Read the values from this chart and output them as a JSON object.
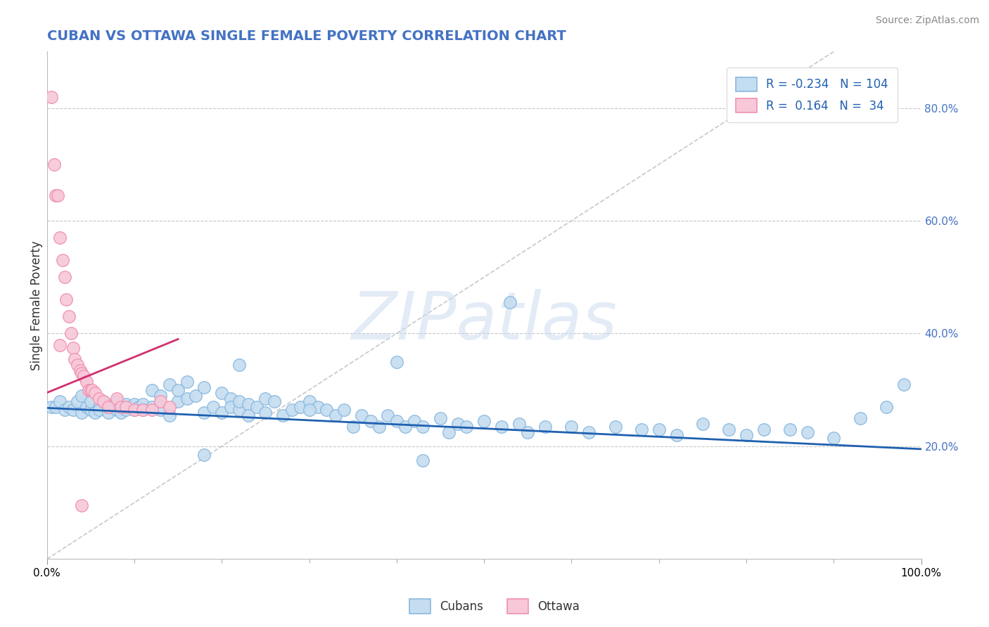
{
  "title": "CUBAN VS OTTAWA SINGLE FEMALE POVERTY CORRELATION CHART",
  "source": "Source: ZipAtlas.com",
  "ylabel": "Single Female Poverty",
  "xlim": [
    0,
    1.0
  ],
  "ylim": [
    0,
    0.9
  ],
  "y_tick_labels": [
    "20.0%",
    "40.0%",
    "60.0%",
    "80.0%"
  ],
  "y_tick_positions": [
    0.2,
    0.4,
    0.6,
    0.8
  ],
  "blue_color": "#89b8e0",
  "blue_fill": "#c5ddf0",
  "pink_color": "#f090b0",
  "pink_fill": "#f8c8d8",
  "blue_line_color": "#2060b0",
  "pink_line_color": "#d03070",
  "diagonal_color": "#c8c8c8",
  "grid_color": "#c8c8c8",
  "watermark": "ZIPatlas",
  "legend_R_blue": "R = -0.234",
  "legend_N_blue": "N = 104",
  "legend_R_pink": "R =  0.164",
  "legend_N_pink": "N =  34",
  "title_color": "#4472c4",
  "blue_trend_x": [
    0.0,
    1.0
  ],
  "blue_trend_y": [
    0.268,
    0.195
  ],
  "pink_trend_x": [
    0.0,
    0.15
  ],
  "pink_trend_y": [
    0.295,
    0.39
  ],
  "cubans_x": [
    0.005,
    0.01,
    0.015,
    0.02,
    0.025,
    0.03,
    0.035,
    0.04,
    0.04,
    0.045,
    0.05,
    0.05,
    0.055,
    0.06,
    0.06,
    0.065,
    0.07,
    0.07,
    0.075,
    0.08,
    0.08,
    0.085,
    0.09,
    0.09,
    0.095,
    0.1,
    0.1,
    0.105,
    0.11,
    0.11,
    0.12,
    0.12,
    0.13,
    0.13,
    0.14,
    0.14,
    0.15,
    0.15,
    0.16,
    0.16,
    0.17,
    0.18,
    0.18,
    0.19,
    0.2,
    0.2,
    0.21,
    0.21,
    0.22,
    0.22,
    0.23,
    0.23,
    0.24,
    0.25,
    0.25,
    0.26,
    0.27,
    0.28,
    0.29,
    0.3,
    0.31,
    0.32,
    0.33,
    0.34,
    0.35,
    0.36,
    0.37,
    0.38,
    0.39,
    0.4,
    0.41,
    0.42,
    0.43,
    0.45,
    0.46,
    0.47,
    0.48,
    0.5,
    0.52,
    0.54,
    0.55,
    0.57,
    0.6,
    0.62,
    0.65,
    0.68,
    0.7,
    0.72,
    0.75,
    0.78,
    0.8,
    0.82,
    0.85,
    0.87,
    0.9,
    0.93,
    0.96,
    0.98,
    0.53,
    0.4,
    0.22,
    0.18,
    0.3,
    0.43
  ],
  "cubans_y": [
    0.27,
    0.27,
    0.28,
    0.265,
    0.27,
    0.265,
    0.28,
    0.26,
    0.29,
    0.27,
    0.265,
    0.28,
    0.26,
    0.27,
    0.265,
    0.28,
    0.26,
    0.27,
    0.275,
    0.265,
    0.28,
    0.26,
    0.275,
    0.265,
    0.27,
    0.265,
    0.275,
    0.27,
    0.275,
    0.265,
    0.3,
    0.27,
    0.29,
    0.265,
    0.31,
    0.255,
    0.28,
    0.3,
    0.285,
    0.315,
    0.29,
    0.26,
    0.305,
    0.27,
    0.295,
    0.26,
    0.285,
    0.27,
    0.265,
    0.28,
    0.275,
    0.255,
    0.27,
    0.285,
    0.26,
    0.28,
    0.255,
    0.265,
    0.27,
    0.28,
    0.27,
    0.265,
    0.255,
    0.265,
    0.235,
    0.255,
    0.245,
    0.235,
    0.255,
    0.245,
    0.235,
    0.245,
    0.235,
    0.25,
    0.225,
    0.24,
    0.235,
    0.245,
    0.235,
    0.24,
    0.225,
    0.235,
    0.235,
    0.225,
    0.235,
    0.23,
    0.23,
    0.22,
    0.24,
    0.23,
    0.22,
    0.23,
    0.23,
    0.225,
    0.215,
    0.25,
    0.27,
    0.31,
    0.455,
    0.35,
    0.345,
    0.185,
    0.265,
    0.175
  ],
  "ottawa_x": [
    0.005,
    0.008,
    0.01,
    0.012,
    0.015,
    0.018,
    0.02,
    0.022,
    0.025,
    0.028,
    0.03,
    0.032,
    0.035,
    0.038,
    0.04,
    0.042,
    0.045,
    0.048,
    0.05,
    0.052,
    0.055,
    0.06,
    0.065,
    0.07,
    0.08,
    0.085,
    0.09,
    0.1,
    0.11,
    0.12,
    0.13,
    0.14,
    0.015,
    0.04
  ],
  "ottawa_y": [
    0.82,
    0.7,
    0.645,
    0.645,
    0.57,
    0.53,
    0.5,
    0.46,
    0.43,
    0.4,
    0.375,
    0.355,
    0.345,
    0.335,
    0.33,
    0.325,
    0.315,
    0.3,
    0.3,
    0.3,
    0.295,
    0.285,
    0.28,
    0.27,
    0.285,
    0.27,
    0.27,
    0.265,
    0.265,
    0.265,
    0.28,
    0.27,
    0.38,
    0.095
  ]
}
